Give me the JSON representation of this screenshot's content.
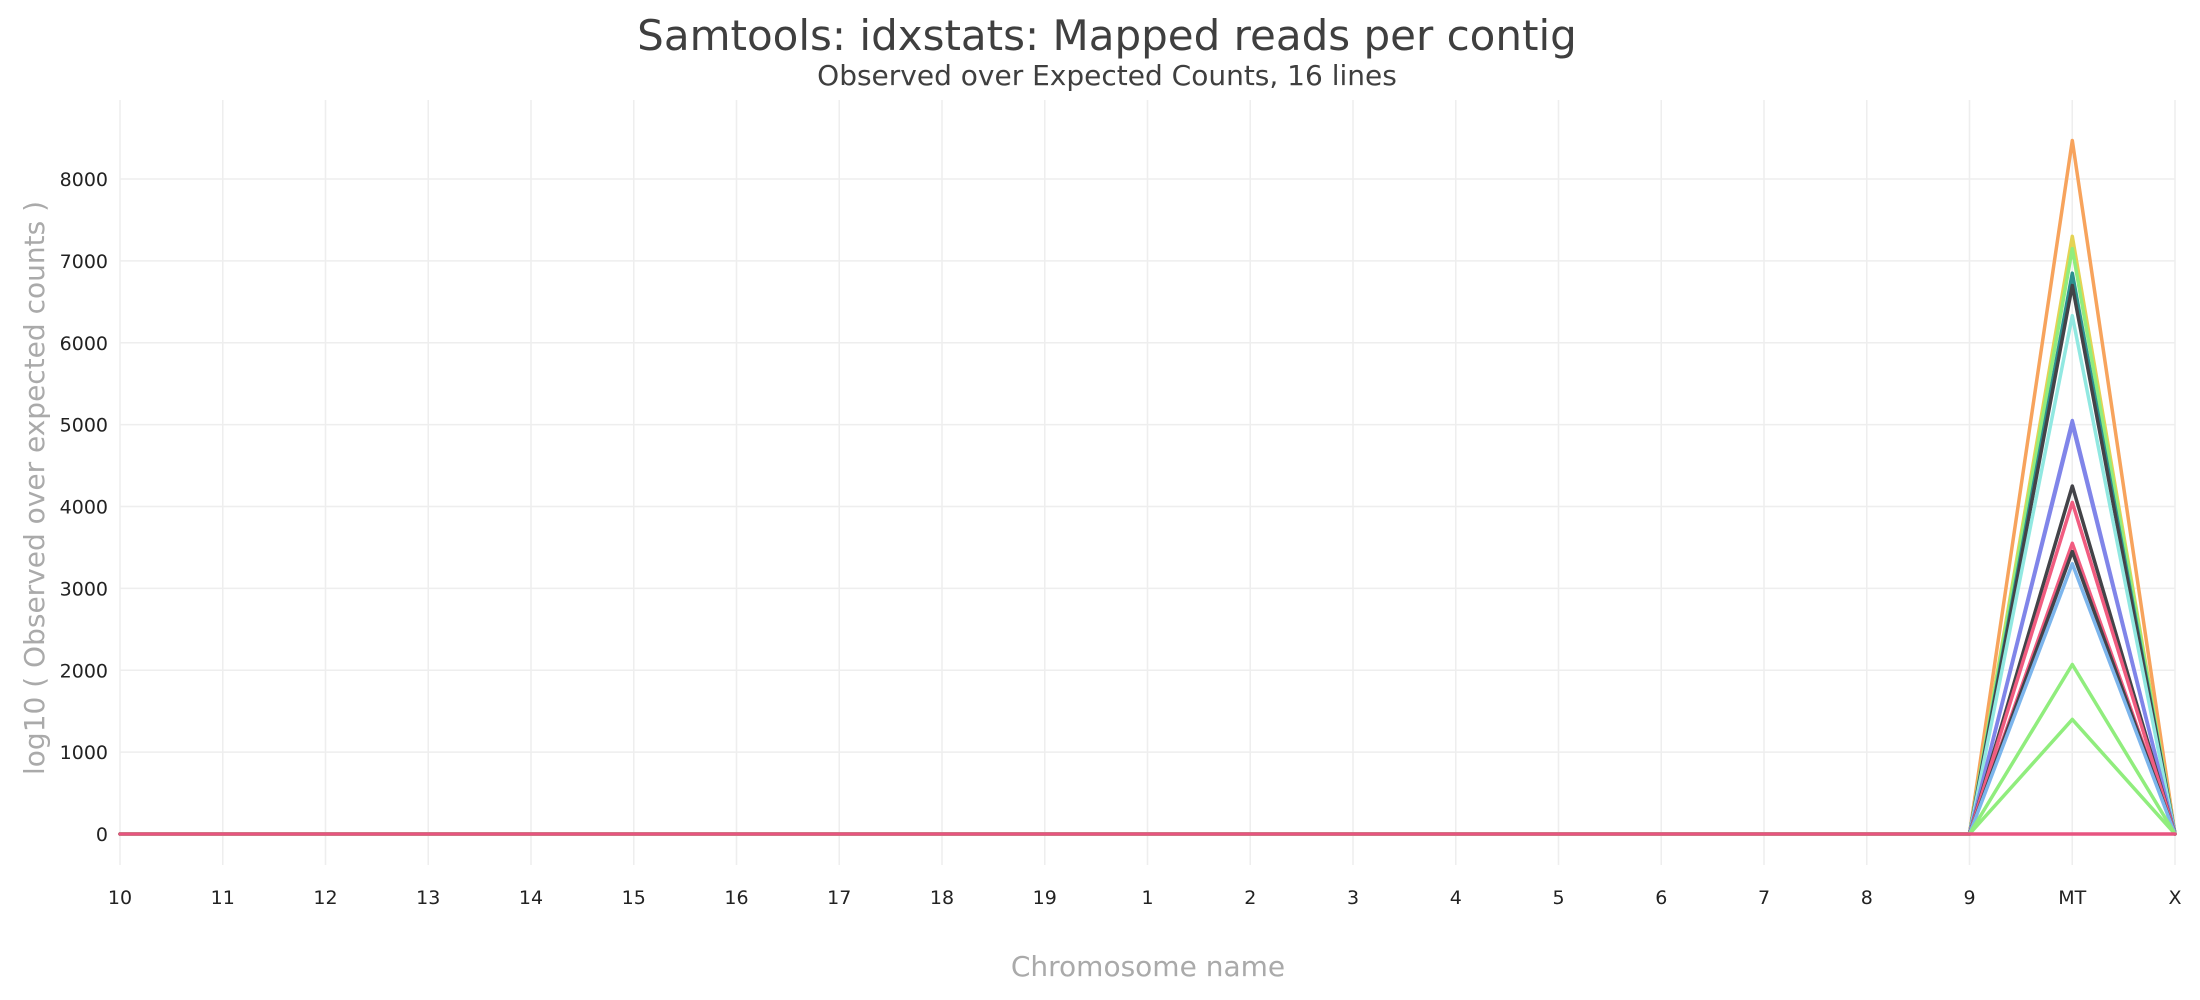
{
  "chart_data": {
    "type": "line",
    "title": "Samtools: idxstats: Mapped reads per contig",
    "subtitle": "Observed over Expected Counts, 16 lines",
    "xlabel": "Chromosome name",
    "ylabel": "log10 ( Observed over expected counts )",
    "categories": [
      "10",
      "11",
      "12",
      "13",
      "14",
      "15",
      "16",
      "17",
      "18",
      "19",
      "1",
      "2",
      "3",
      "4",
      "5",
      "6",
      "7",
      "8",
      "9",
      "MT",
      "X"
    ],
    "ylim": [
      -500,
      8950
    ],
    "yticks": [
      0,
      1000,
      2000,
      3000,
      4000,
      5000,
      6000,
      7000,
      8000
    ],
    "grid": true,
    "series": [
      {
        "color": "#f7a35c",
        "values": [
          0,
          0,
          0,
          0,
          0,
          0,
          0,
          0,
          0,
          0,
          0,
          0,
          0,
          0,
          0,
          0,
          0,
          0,
          0,
          8470,
          0
        ]
      },
      {
        "color": "#e4d354",
        "values": [
          0,
          0,
          0,
          0,
          0,
          0,
          0,
          0,
          0,
          0,
          0,
          0,
          0,
          0,
          0,
          0,
          0,
          0,
          0,
          7300,
          0
        ]
      },
      {
        "color": "#90ed7d",
        "values": [
          0,
          0,
          0,
          0,
          0,
          0,
          0,
          0,
          0,
          0,
          0,
          0,
          0,
          0,
          0,
          0,
          0,
          0,
          0,
          7150,
          0
        ]
      },
      {
        "color": "#2b908f",
        "values": [
          0,
          0,
          0,
          0,
          0,
          0,
          0,
          0,
          0,
          0,
          0,
          0,
          0,
          0,
          0,
          0,
          0,
          0,
          0,
          6850,
          0
        ]
      },
      {
        "color": "#434348",
        "values": [
          0,
          0,
          0,
          0,
          0,
          0,
          0,
          0,
          0,
          0,
          0,
          0,
          0,
          0,
          0,
          0,
          0,
          0,
          0,
          6700,
          0
        ]
      },
      {
        "color": "#91e8e1",
        "values": [
          0,
          0,
          0,
          0,
          0,
          0,
          0,
          0,
          0,
          0,
          0,
          0,
          0,
          0,
          0,
          0,
          0,
          0,
          0,
          6330,
          0
        ]
      },
      {
        "color": "#8085e9",
        "values": [
          0,
          0,
          0,
          0,
          0,
          0,
          0,
          0,
          0,
          0,
          0,
          0,
          0,
          0,
          0,
          0,
          0,
          0,
          0,
          5050,
          0
        ]
      },
      {
        "color": "#8085e9",
        "values": [
          0,
          0,
          0,
          0,
          0,
          0,
          0,
          0,
          0,
          0,
          0,
          0,
          0,
          0,
          0,
          0,
          0,
          0,
          0,
          5000,
          0
        ]
      },
      {
        "color": "#434348",
        "values": [
          0,
          0,
          0,
          0,
          0,
          0,
          0,
          0,
          0,
          0,
          0,
          0,
          0,
          0,
          0,
          0,
          0,
          0,
          0,
          4250,
          0
        ]
      },
      {
        "color": "#f15c80",
        "values": [
          0,
          0,
          0,
          0,
          0,
          0,
          0,
          0,
          0,
          0,
          0,
          0,
          0,
          0,
          0,
          0,
          0,
          0,
          0,
          4050,
          0
        ]
      },
      {
        "color": "#f15c80",
        "values": [
          0,
          0,
          0,
          0,
          0,
          0,
          0,
          0,
          0,
          0,
          0,
          0,
          0,
          0,
          0,
          0,
          0,
          0,
          0,
          3550,
          0
        ]
      },
      {
        "color": "#434348",
        "values": [
          0,
          0,
          0,
          0,
          0,
          0,
          0,
          0,
          0,
          0,
          0,
          0,
          0,
          0,
          0,
          0,
          0,
          0,
          0,
          3450,
          0
        ]
      },
      {
        "color": "#7cb5ec",
        "values": [
          0,
          0,
          0,
          0,
          0,
          0,
          0,
          0,
          0,
          0,
          0,
          0,
          0,
          0,
          0,
          0,
          0,
          0,
          0,
          3300,
          0
        ]
      },
      {
        "color": "#90ed7d",
        "values": [
          0,
          0,
          0,
          0,
          0,
          0,
          0,
          0,
          0,
          0,
          0,
          0,
          0,
          0,
          0,
          0,
          0,
          0,
          0,
          2070,
          0
        ]
      },
      {
        "color": "#90ed7d",
        "values": [
          0,
          0,
          0,
          0,
          0,
          0,
          0,
          0,
          0,
          0,
          0,
          0,
          0,
          0,
          0,
          0,
          0,
          0,
          0,
          1400,
          0
        ]
      },
      {
        "color": "#e75480",
        "values": [
          0,
          0,
          0,
          0,
          0,
          0,
          0,
          0,
          0,
          0,
          0,
          0,
          0,
          0,
          0,
          0,
          0,
          0,
          0,
          0,
          0
        ]
      }
    ]
  }
}
